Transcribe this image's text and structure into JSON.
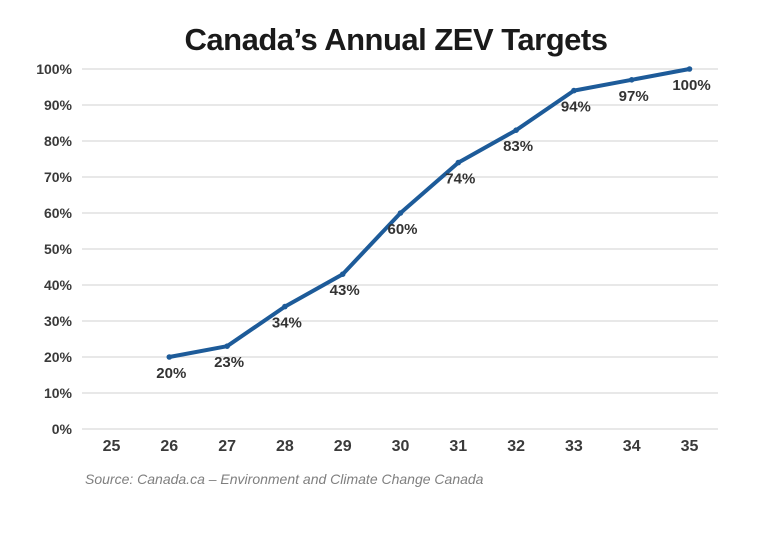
{
  "chart_data": {
    "type": "line",
    "title": "Canada’s Annual ZEV Targets",
    "x": [
      26,
      27,
      28,
      29,
      30,
      31,
      32,
      33,
      34,
      35
    ],
    "values": [
      20,
      23,
      34,
      43,
      60,
      74,
      83,
      94,
      97,
      100
    ],
    "point_labels": [
      "20%",
      "23%",
      "34%",
      "43%",
      "60%",
      "74%",
      "83%",
      "94%",
      "97%",
      "100%"
    ],
    "x_ticks": [
      "25",
      "26",
      "27",
      "28",
      "29",
      "30",
      "31",
      "32",
      "33",
      "34",
      "35"
    ],
    "y_ticks": [
      "0%",
      "10%",
      "20%",
      "30%",
      "40%",
      "50%",
      "60%",
      "70%",
      "80%",
      "90%",
      "100%"
    ],
    "xlim": [
      25,
      35
    ],
    "ylim": [
      0,
      100
    ],
    "grid": true,
    "legend": "none",
    "xlabel": "",
    "ylabel": ""
  },
  "source_note": "Source: Canada.ca – Environment and Climate Change Canada",
  "colors": {
    "line": "#1d5b99",
    "grid": "#d9d9d9",
    "tick_text": "#3a3a3a",
    "point_label_text": "#333333",
    "title_text": "#1a1a1a",
    "source_text": "#7f7f7f"
  }
}
